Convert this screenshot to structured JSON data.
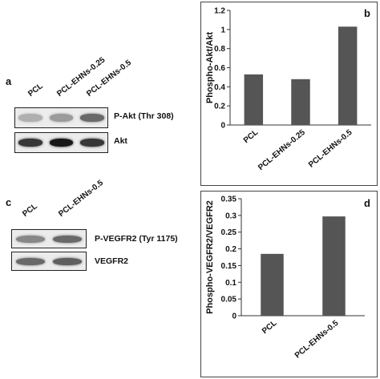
{
  "panels": {
    "a": {
      "letter": "a",
      "lanes": [
        "PCL",
        "PCL-EHNs-0.25",
        "PCL-EHNs-0.5"
      ],
      "blots": [
        {
          "label": "P-Akt (Thr 308)",
          "band_intensity": [
            0.25,
            0.35,
            0.6
          ]
        },
        {
          "label": "Akt",
          "band_intensity": [
            0.85,
            1.0,
            0.85
          ]
        }
      ]
    },
    "c": {
      "letter": "c",
      "lanes": [
        "PCL",
        "PCL-EHNs-0.5"
      ],
      "blots": [
        {
          "label": "P-VEGFR2 (Tyr 1175)",
          "band_intensity": [
            0.45,
            0.6
          ]
        },
        {
          "label": "VEGFR2",
          "band_intensity": [
            0.6,
            0.65
          ]
        }
      ]
    },
    "b": {
      "letter": "b"
    },
    "d": {
      "letter": "d"
    }
  },
  "chart_data": [
    {
      "id": "b",
      "type": "bar",
      "categories": [
        "PCL",
        "PCL-EHNs-0.25",
        "PCL-EHNs-0.5"
      ],
      "values": [
        0.53,
        0.48,
        1.03
      ],
      "ylabel": "Phospho-Akt/Akt",
      "xlabel": "",
      "title": "",
      "ylim": [
        0,
        1.2
      ],
      "yticks": [
        "0",
        "0.2",
        "0.4",
        "0.6",
        "0.8",
        "1",
        "1.2"
      ],
      "bar_color": "#555555"
    },
    {
      "id": "d",
      "type": "bar",
      "categories": [
        "PCL",
        "PCL-EHNs-0.5"
      ],
      "values": [
        0.185,
        0.297
      ],
      "ylabel": "Phospho-VEGFR2/VEGFR2",
      "xlabel": "",
      "title": "",
      "ylim": [
        0,
        0.35
      ],
      "yticks": [
        "0",
        "0.05",
        "0.1",
        "0.15",
        "0.2",
        "0.25",
        "0.3",
        "0.35"
      ],
      "bar_color": "#555555"
    }
  ]
}
